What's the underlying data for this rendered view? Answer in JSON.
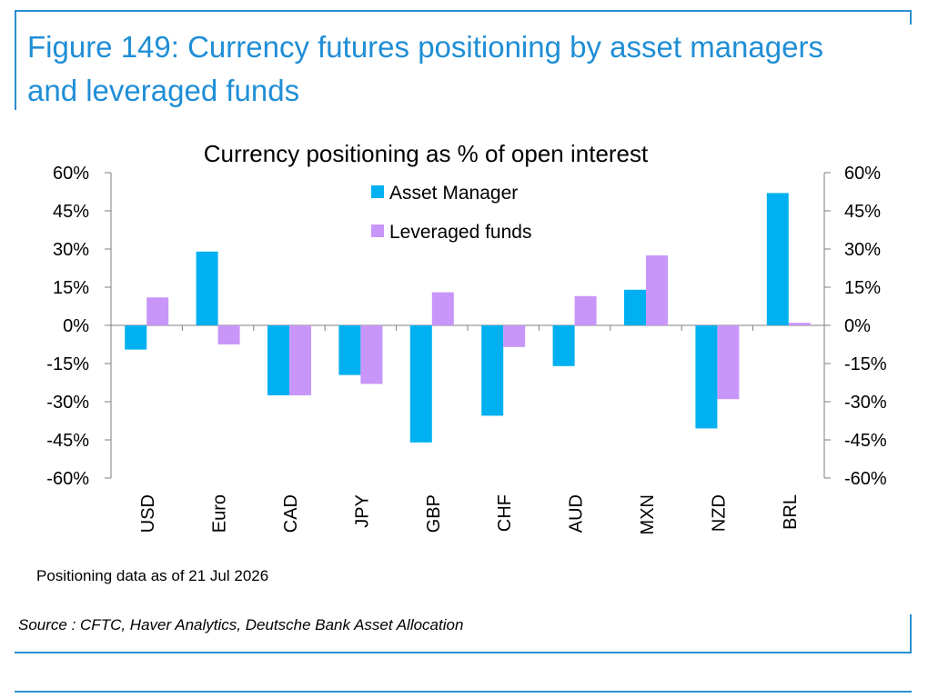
{
  "figure": {
    "title": "Figure 149: Currency futures positioning by asset managers and leveraged funds",
    "note": "Positioning data as of 21 Jul 2026",
    "source": "Source : CFTC, Haver Analytics, Deutsche Bank Asset Allocation"
  },
  "colors": {
    "accent": "#1f8ed6",
    "asset_manager": "#00b0f0",
    "leveraged_funds": "#c896f8"
  },
  "chart_data": {
    "type": "bar",
    "title": "Currency positioning as % of open interest",
    "xlabel": "",
    "ylabel": "",
    "ylim": [
      -0.6,
      0.6
    ],
    "yticks": [
      "60%",
      "45%",
      "30%",
      "15%",
      "0%",
      "-15%",
      "-30%",
      "-45%",
      "-60%"
    ],
    "ytick_values": [
      0.6,
      0.45,
      0.3,
      0.15,
      0,
      -0.15,
      -0.3,
      -0.45,
      -0.6
    ],
    "categories": [
      "USD",
      "Euro",
      "CAD",
      "JPY",
      "GBP",
      "CHF",
      "AUD",
      "MXN",
      "NZD",
      "BRL"
    ],
    "series": [
      {
        "name": "Asset Manager",
        "color": "#00b0f0",
        "values": [
          -0.095,
          0.29,
          -0.275,
          -0.195,
          -0.46,
          -0.355,
          -0.16,
          0.14,
          -0.405,
          0.52
        ]
      },
      {
        "name": "Leveraged funds",
        "color": "#c896f8",
        "values": [
          0.11,
          -0.075,
          -0.275,
          -0.23,
          0.13,
          -0.085,
          0.115,
          0.275,
          -0.29,
          0.01
        ]
      }
    ],
    "grid": false,
    "legend_position": "top-center",
    "dual_axis": true
  }
}
